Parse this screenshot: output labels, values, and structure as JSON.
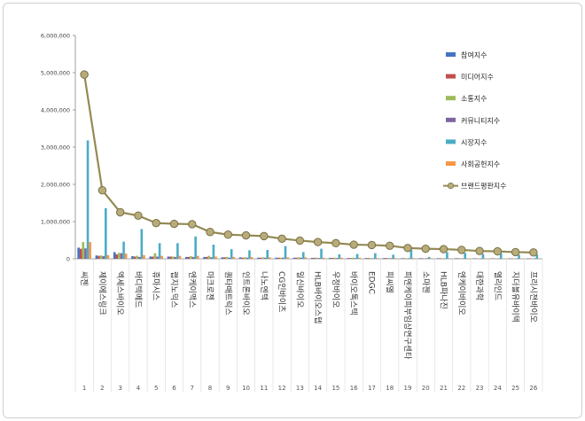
{
  "chart_data": {
    "type": "bar",
    "ylim": [
      0,
      6000000
    ],
    "yticks": [
      "0",
      "1,000,000",
      "2,000,000",
      "3,000,000",
      "4,000,000",
      "5,000,000",
      "6,000,000"
    ],
    "ytick_values": [
      0,
      1000000,
      2000000,
      3000000,
      4000000,
      5000000,
      6000000
    ],
    "grid": false,
    "legend_position": "top-right",
    "numbers": [
      "1",
      "2",
      "3",
      "4",
      "5",
      "6",
      "7",
      "8",
      "9",
      "10",
      "11",
      "12",
      "13",
      "14",
      "15",
      "16",
      "17",
      "18",
      "19",
      "20",
      "21",
      "22",
      "23",
      "24",
      "25",
      "26"
    ],
    "categories": [
      "씨젠",
      "제이에스링크",
      "엑세스바이오",
      "바디텍메드",
      "휴마시스",
      "랩지노믹스",
      "엔케이맥스",
      "마크로젠",
      "퀀타매트릭스",
      "인트론바이오",
      "나노엔텍",
      "CG인바이츠",
      "일신바이오",
      "HLB바이오스텝",
      "우정바이오",
      "바이오톡스텍",
      "EDGC",
      "피씨엘",
      "피엔케이피부임상연구센타",
      "소마젠",
      "HLB파나진",
      "엔케이바이오",
      "대한과학",
      "엘리인드",
      "지더블유바이텍",
      "프리시젼바이오"
    ],
    "series": [
      {
        "name": "참여지수",
        "color": "#4472c4",
        "values": [
          300000,
          90000,
          180000,
          70000,
          60000,
          60000,
          50000,
          50000,
          40000,
          40000,
          30000,
          30000,
          30000,
          25000,
          25000,
          20000,
          20000,
          20000,
          15000,
          15000,
          15000,
          15000,
          12000,
          12000,
          10000,
          10000
        ]
      },
      {
        "name": "미디어지수",
        "color": "#c0504d",
        "values": [
          270000,
          80000,
          120000,
          60000,
          60000,
          60000,
          50000,
          50000,
          40000,
          30000,
          30000,
          30000,
          30000,
          25000,
          25000,
          20000,
          20000,
          20000,
          15000,
          15000,
          15000,
          15000,
          12000,
          12000,
          10000,
          10000
        ]
      },
      {
        "name": "소통지수",
        "color": "#9bbb59",
        "values": [
          450000,
          90000,
          160000,
          80000,
          150000,
          60000,
          70000,
          80000,
          50000,
          40000,
          40000,
          30000,
          40000,
          30000,
          30000,
          30000,
          20000,
          20000,
          15000,
          15000,
          15000,
          15000,
          12000,
          12000,
          10000,
          10000
        ]
      },
      {
        "name": "커뮤니티지수",
        "color": "#8064a2",
        "values": [
          280000,
          70000,
          150000,
          50000,
          60000,
          50000,
          50000,
          40000,
          30000,
          30000,
          30000,
          30000,
          30000,
          20000,
          20000,
          20000,
          15000,
          15000,
          15000,
          15000,
          12000,
          12000,
          10000,
          10000,
          10000,
          10000
        ]
      },
      {
        "name": "시장지수",
        "color": "#4bacc6",
        "values": [
          3180000,
          1360000,
          460000,
          800000,
          420000,
          420000,
          600000,
          380000,
          260000,
          230000,
          240000,
          340000,
          180000,
          270000,
          120000,
          130000,
          150000,
          110000,
          250000,
          50000,
          180000,
          160000,
          130000,
          150000,
          110000,
          120000
        ]
      },
      {
        "name": "사회공헌지수",
        "color": "#f79646",
        "values": [
          450000,
          100000,
          140000,
          100000,
          80000,
          80000,
          80000,
          60000,
          50000,
          50000,
          40000,
          40000,
          40000,
          30000,
          30000,
          30000,
          20000,
          20000,
          20000,
          15000,
          15000,
          15000,
          12000,
          12000,
          10000,
          10000
        ]
      }
    ],
    "line_series": {
      "name": "브랜드평판지수",
      "color": "#948a54",
      "values": [
        4950000,
        1840000,
        1250000,
        1160000,
        960000,
        940000,
        930000,
        720000,
        650000,
        630000,
        610000,
        540000,
        490000,
        450000,
        420000,
        380000,
        370000,
        350000,
        290000,
        270000,
        260000,
        240000,
        210000,
        200000,
        180000,
        170000
      ]
    }
  }
}
